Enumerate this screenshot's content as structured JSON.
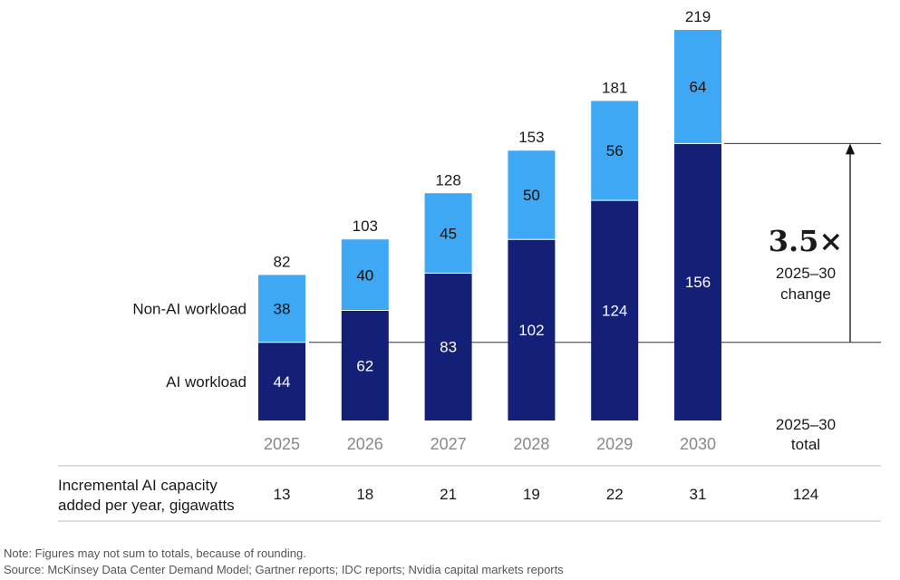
{
  "chart_data": {
    "type": "bar",
    "stacked": true,
    "categories": [
      "2025",
      "2026",
      "2027",
      "2028",
      "2029",
      "2030"
    ],
    "series": [
      {
        "name": "AI workload",
        "values": [
          44,
          62,
          83,
          102,
          124,
          156
        ],
        "color": "#141f78"
      },
      {
        "name": "Non-AI workload",
        "values": [
          38,
          40,
          45,
          50,
          56,
          64
        ],
        "color": "#3fa8f5"
      }
    ],
    "totals": [
      82,
      103,
      128,
      153,
      181,
      219
    ],
    "ylim": [
      0,
      219
    ],
    "grid": false,
    "annotation": {
      "multiplier": "3.5×",
      "label_line1": "2025–30",
      "label_line2": "change",
      "from_value": 44,
      "to_value": 156
    },
    "total_column_header": [
      "2025–30",
      "total"
    ],
    "table": {
      "row_label": [
        "Incremental AI capacity",
        "added per year, gigawatts"
      ],
      "values": [
        "13",
        "18",
        "21",
        "19",
        "22",
        "31"
      ],
      "total": "124"
    },
    "colors": {
      "text": "#1a1a1a",
      "axis_label": "#888888",
      "rule": "#bbbbbb"
    }
  },
  "notes": {
    "note": "Note: Figures may not sum to totals, because of rounding.",
    "source": "Source: McKinsey Data Center Demand Model; Gartner reports; IDC reports; Nvidia capital markets reports"
  }
}
